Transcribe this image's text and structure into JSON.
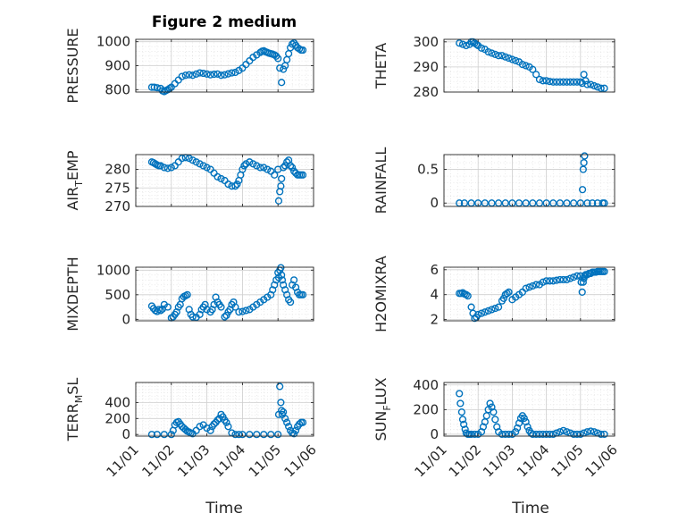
{
  "figure": {
    "title": "Figure 2 medium",
    "marker_color": "#0072BD"
  },
  "chart_data": [
    {
      "type": "scatter",
      "ylabel": "PRESSURE",
      "ylim": [
        790,
        1010
      ],
      "yticks": [
        800,
        900,
        1000
      ],
      "xlim": [
        0,
        5
      ],
      "grid": true,
      "series": [
        {
          "x": [
            0.45,
            0.52,
            0.6,
            0.7,
            0.75,
            0.8,
            0.85,
            0.9,
            0.95,
            1.0,
            1.1,
            1.2,
            1.3,
            1.4,
            1.5,
            1.6,
            1.7,
            1.8,
            1.9,
            2.0,
            2.1,
            2.2,
            2.3,
            2.4,
            2.5,
            2.6,
            2.7,
            2.8,
            2.9,
            3.0,
            3.1,
            3.2,
            3.3,
            3.4,
            3.5,
            3.55,
            3.6,
            3.65,
            3.7,
            3.75,
            3.8,
            3.85,
            3.9,
            3.95,
            4.0,
            4.05,
            4.1,
            4.15,
            4.2,
            4.25,
            4.3,
            4.35,
            4.4,
            4.45,
            4.5,
            4.55,
            4.6,
            4.65,
            4.7
          ],
          "y": [
            810,
            810,
            808,
            805,
            795,
            792,
            796,
            800,
            805,
            810,
            825,
            840,
            855,
            860,
            862,
            860,
            865,
            870,
            868,
            865,
            862,
            864,
            865,
            860,
            862,
            866,
            870,
            872,
            880,
            890,
            905,
            920,
            935,
            945,
            955,
            960,
            962,
            958,
            955,
            952,
            950,
            948,
            945,
            940,
            930,
            890,
            830,
            885,
            900,
            925,
            950,
            975,
            990,
            995,
            985,
            975,
            970,
            965,
            965
          ]
        }
      ]
    },
    {
      "type": "scatter",
      "ylabel": "THETA",
      "ylim": [
        280,
        301
      ],
      "yticks": [
        280,
        290,
        300
      ],
      "xlim": [
        0,
        5
      ],
      "grid": true,
      "series": [
        {
          "x": [
            0.45,
            0.55,
            0.65,
            0.75,
            0.8,
            0.85,
            0.9,
            0.95,
            1.0,
            1.1,
            1.2,
            1.3,
            1.4,
            1.5,
            1.6,
            1.7,
            1.8,
            1.9,
            2.0,
            2.1,
            2.2,
            2.3,
            2.4,
            2.5,
            2.6,
            2.7,
            2.8,
            2.9,
            3.0,
            3.1,
            3.2,
            3.3,
            3.4,
            3.5,
            3.6,
            3.7,
            3.8,
            3.9,
            4.0,
            4.05,
            4.1,
            4.15,
            4.2,
            4.3,
            4.4,
            4.5,
            4.6,
            4.7
          ],
          "y": [
            299.5,
            299,
            298.5,
            299,
            300,
            300,
            299.5,
            299,
            298.5,
            297.5,
            297,
            296,
            295.5,
            295,
            294.5,
            294.5,
            294,
            293.5,
            293,
            292.5,
            292,
            291,
            290.5,
            290,
            289,
            287,
            285,
            284.5,
            284.5,
            284.2,
            284,
            284,
            284,
            284,
            284,
            284,
            284,
            284,
            284,
            283.5,
            287,
            284.5,
            283,
            283,
            282.5,
            282,
            281.5,
            281.5
          ]
        }
      ]
    },
    {
      "type": "scatter",
      "ylabel_main": "AIR",
      "ylabel_sub": "T",
      "ylabel_rest": "EMP",
      "ylim": [
        270,
        284
      ],
      "yticks": [
        270,
        275,
        280
      ],
      "xlim": [
        0,
        5
      ],
      "grid": true,
      "series": [
        {
          "x": [
            0.45,
            0.5,
            0.55,
            0.6,
            0.65,
            0.7,
            0.8,
            0.9,
            1.0,
            1.1,
            1.2,
            1.3,
            1.4,
            1.5,
            1.6,
            1.7,
            1.8,
            1.9,
            2.0,
            2.1,
            2.2,
            2.3,
            2.4,
            2.5,
            2.6,
            2.7,
            2.8,
            2.85,
            2.9,
            2.95,
            3.0,
            3.05,
            3.1,
            3.2,
            3.3,
            3.4,
            3.5,
            3.6,
            3.7,
            3.8,
            3.9,
            4.0,
            4.02,
            4.05,
            4.08,
            4.1,
            4.15,
            4.2,
            4.25,
            4.3,
            4.35,
            4.4,
            4.45,
            4.5,
            4.55,
            4.6,
            4.65,
            4.7
          ],
          "y": [
            282,
            281.8,
            281.5,
            281.2,
            281,
            281,
            280.5,
            280.3,
            280.5,
            281,
            282,
            283,
            283.2,
            283,
            282.5,
            282,
            281.5,
            281,
            280.5,
            280,
            279,
            278,
            277.5,
            277,
            276,
            275.5,
            275.5,
            276,
            277,
            278.5,
            280,
            281,
            281.5,
            282,
            281.5,
            281,
            280.5,
            280.5,
            280,
            279.5,
            278.5,
            280,
            271.5,
            274,
            275.5,
            277.5,
            280.5,
            281,
            282,
            282.5,
            281,
            280.5,
            279.5,
            279,
            278.5,
            278.5,
            278.5,
            278.5
          ]
        }
      ]
    },
    {
      "type": "scatter",
      "ylabel": "RAINFALL",
      "ylim": [
        -0.05,
        0.72
      ],
      "yticks": [
        0,
        0.5
      ],
      "ytick_labels": [
        "0",
        "0.5"
      ],
      "xlim": [
        0,
        5
      ],
      "grid": true,
      "series": [
        {
          "x": [
            0.45,
            0.6,
            0.8,
            1.0,
            1.2,
            1.4,
            1.6,
            1.8,
            2.0,
            2.2,
            2.4,
            2.6,
            2.8,
            3.0,
            3.2,
            3.4,
            3.6,
            3.8,
            4.0,
            4.06,
            4.08,
            4.1,
            4.12,
            4.2,
            4.35,
            4.5,
            4.65,
            4.7
          ],
          "y": [
            0,
            0,
            0,
            0,
            0,
            0,
            0,
            0,
            0,
            0,
            0,
            0,
            0,
            0,
            0,
            0,
            0,
            0,
            0,
            0.2,
            0.5,
            0.6,
            0.7,
            0,
            0,
            0,
            0,
            0
          ]
        }
      ]
    },
    {
      "type": "scatter",
      "ylabel": "MIXDEPTH",
      "ylim": [
        -30,
        1060
      ],
      "yticks": [
        0,
        500,
        1000
      ],
      "xlim": [
        0,
        5
      ],
      "grid": true,
      "series": [
        {
          "x": [
            0.45,
            0.5,
            0.55,
            0.6,
            0.65,
            0.7,
            0.75,
            0.8,
            0.9,
            1.0,
            1.05,
            1.1,
            1.15,
            1.2,
            1.25,
            1.3,
            1.35,
            1.4,
            1.45,
            1.5,
            1.55,
            1.6,
            1.7,
            1.8,
            1.85,
            1.9,
            1.95,
            2.0,
            2.1,
            2.15,
            2.2,
            2.25,
            2.3,
            2.35,
            2.4,
            2.5,
            2.55,
            2.6,
            2.65,
            2.7,
            2.75,
            2.8,
            2.9,
            3.0,
            3.1,
            3.2,
            3.3,
            3.4,
            3.5,
            3.6,
            3.7,
            3.8,
            3.85,
            3.9,
            3.95,
            4.0,
            4.02,
            4.05,
            4.08,
            4.1,
            4.12,
            4.15,
            4.2,
            4.25,
            4.3,
            4.35,
            4.4,
            4.45,
            4.5,
            4.55,
            4.6,
            4.65,
            4.7
          ],
          "y": [
            270,
            220,
            180,
            160,
            200,
            180,
            210,
            300,
            250,
            30,
            50,
            100,
            150,
            250,
            300,
            420,
            460,
            480,
            500,
            200,
            100,
            50,
            40,
            100,
            200,
            250,
            300,
            200,
            150,
            200,
            300,
            450,
            350,
            300,
            250,
            50,
            80,
            150,
            200,
            300,
            350,
            250,
            150,
            160,
            180,
            200,
            250,
            300,
            350,
            400,
            450,
            500,
            600,
            700,
            800,
            950,
            850,
            1000,
            1050,
            900,
            800,
            700,
            600,
            500,
            400,
            350,
            700,
            800,
            650,
            550,
            500,
            500,
            500
          ]
        }
      ]
    },
    {
      "type": "scatter",
      "ylabel": "H2OMIXRA",
      "ylim": [
        1.9,
        6.2
      ],
      "yticks": [
        2,
        4,
        6
      ],
      "xlim": [
        0,
        5
      ],
      "grid": true,
      "series": [
        {
          "x": [
            0.45,
            0.5,
            0.55,
            0.6,
            0.65,
            0.7,
            0.8,
            0.85,
            0.9,
            0.95,
            1.0,
            1.1,
            1.2,
            1.3,
            1.4,
            1.5,
            1.6,
            1.7,
            1.75,
            1.8,
            1.85,
            1.9,
            2.0,
            2.1,
            2.2,
            2.3,
            2.4,
            2.5,
            2.6,
            2.7,
            2.8,
            2.9,
            3.0,
            3.1,
            3.2,
            3.3,
            3.4,
            3.5,
            3.6,
            3.7,
            3.8,
            3.9,
            4.0,
            4.02,
            4.05,
            4.08,
            4.1,
            4.12,
            4.15,
            4.2,
            4.25,
            4.3,
            4.35,
            4.4,
            4.45,
            4.5,
            4.55,
            4.6,
            4.65,
            4.7
          ],
          "y": [
            4.1,
            4.1,
            4.15,
            4.05,
            4.0,
            3.9,
            3.0,
            2.5,
            2.1,
            2.2,
            2.4,
            2.5,
            2.6,
            2.7,
            2.8,
            2.9,
            3.0,
            3.5,
            3.7,
            4.0,
            4.1,
            4.2,
            3.6,
            3.8,
            4.0,
            4.2,
            4.5,
            4.6,
            4.7,
            4.8,
            4.8,
            5.0,
            5.1,
            5.1,
            5.1,
            5.15,
            5.2,
            5.2,
            5.2,
            5.3,
            5.4,
            5.5,
            5.5,
            5.0,
            4.2,
            5.0,
            5.3,
            5.5,
            5.6,
            5.6,
            5.7,
            5.7,
            5.8,
            5.8,
            5.8,
            5.85,
            5.85,
            5.85,
            5.85,
            5.85
          ]
        }
      ]
    },
    {
      "type": "scatter",
      "ylabel_main": "TERR",
      "ylabel_sub": "M",
      "ylabel_rest": "SL",
      "ylim": [
        -20,
        650
      ],
      "yticks": [
        0,
        200,
        400
      ],
      "xlim": [
        0,
        5
      ],
      "grid": true,
      "series": [
        {
          "x": [
            0.45,
            0.6,
            0.8,
            1.0,
            1.05,
            1.1,
            1.15,
            1.2,
            1.25,
            1.3,
            1.35,
            1.4,
            1.45,
            1.5,
            1.55,
            1.6,
            1.7,
            1.8,
            1.9,
            2.0,
            2.1,
            2.15,
            2.2,
            2.25,
            2.3,
            2.35,
            2.4,
            2.45,
            2.5,
            2.55,
            2.6,
            2.7,
            2.8,
            2.9,
            3.0,
            3.2,
            3.4,
            3.6,
            3.8,
            4.0,
            4.02,
            4.05,
            4.08,
            4.1,
            4.12,
            4.15,
            4.2,
            4.25,
            4.3,
            4.35,
            4.4,
            4.45,
            4.5,
            4.55,
            4.6,
            4.65,
            4.7
          ],
          "y": [
            0,
            0,
            0,
            0,
            50,
            120,
            150,
            160,
            130,
            100,
            80,
            60,
            40,
            30,
            20,
            10,
            50,
            100,
            120,
            80,
            50,
            100,
            130,
            150,
            180,
            200,
            250,
            220,
            180,
            150,
            100,
            20,
            0,
            0,
            0,
            0,
            0,
            0,
            0,
            0,
            250,
            600,
            400,
            300,
            250,
            280,
            200,
            150,
            100,
            50,
            20,
            10,
            50,
            100,
            130,
            150,
            150
          ]
        }
      ]
    },
    {
      "type": "scatter",
      "ylabel_main": "SUN",
      "ylabel_sub": "F",
      "ylabel_rest": "LUX",
      "ylim": [
        -15,
        420
      ],
      "yticks": [
        0,
        200,
        400
      ],
      "xlim": [
        0,
        5
      ],
      "grid": true,
      "series": [
        {
          "x": [
            0.45,
            0.48,
            0.52,
            0.55,
            0.58,
            0.62,
            0.65,
            0.7,
            0.75,
            0.8,
            0.9,
            1.0,
            1.1,
            1.15,
            1.2,
            1.25,
            1.3,
            1.35,
            1.4,
            1.45,
            1.5,
            1.55,
            1.6,
            1.7,
            1.8,
            1.9,
            2.0,
            2.1,
            2.15,
            2.2,
            2.25,
            2.3,
            2.35,
            2.4,
            2.45,
            2.5,
            2.55,
            2.6,
            2.7,
            2.8,
            2.9,
            3.0,
            3.1,
            3.2,
            3.3,
            3.4,
            3.5,
            3.6,
            3.7,
            3.8,
            3.9,
            4.0,
            4.1,
            4.2,
            4.3,
            4.4,
            4.5,
            4.6,
            4.7
          ],
          "y": [
            330,
            250,
            180,
            120,
            80,
            40,
            10,
            0,
            0,
            0,
            0,
            0,
            20,
            60,
            100,
            150,
            200,
            250,
            220,
            180,
            120,
            60,
            20,
            0,
            0,
            0,
            0,
            20,
            50,
            90,
            130,
            150,
            130,
            100,
            60,
            30,
            10,
            0,
            0,
            0,
            0,
            0,
            0,
            0,
            10,
            20,
            30,
            20,
            10,
            0,
            0,
            0,
            10,
            20,
            25,
            20,
            10,
            0,
            0
          ]
        }
      ]
    }
  ],
  "x_axis": {
    "ticks": [
      "11/01",
      "11/02",
      "11/03",
      "11/04",
      "11/05",
      "11/06"
    ],
    "xlabel": "Time"
  }
}
